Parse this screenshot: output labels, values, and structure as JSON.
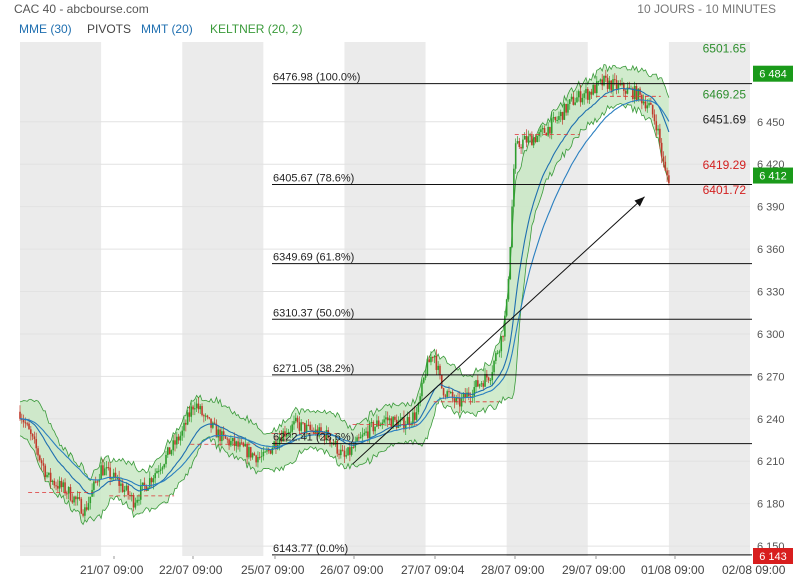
{
  "header": {
    "title": "CAC 40 - abcbourse.com",
    "period": "10 JOURS - 10 MINUTES"
  },
  "legend": {
    "mme": "MME (30)",
    "pivots": "PIVOTS",
    "mmt": "MMT (20)",
    "keltner": "KELTNER (20, 2)"
  },
  "colors": {
    "up": "#2e9e2e",
    "down": "#c0392b",
    "mme": "#1f6fb0",
    "mmt": "#2a7fc0",
    "keltner_line": "#3a9a3a",
    "keltner_fill": "#c9e8c4",
    "band": "#ebebeb",
    "mme_legend": "#1f6fb0",
    "keltner_legend": "#3a9a3a",
    "tag_green": "#1a9a1a",
    "tag_red": "#d81e1e"
  },
  "chart_data": {
    "type": "candlestick",
    "ylim": [
      6143,
      6505
    ],
    "yticks": [
      "6 450",
      "6 420",
      "6 390",
      "6 360",
      "6 330",
      "6 300",
      "6 270",
      "6 240",
      "6 210",
      "6 180",
      "6 150"
    ],
    "ytick_values": [
      6450,
      6420,
      6390,
      6360,
      6330,
      6300,
      6270,
      6240,
      6210,
      6180,
      6150
    ],
    "x_labels": [
      "21/07 09:00",
      "22/07 09:00",
      "25/07 09:00",
      "26/07 09:00",
      "27/07 09:04",
      "28/07 09:00",
      "29/07 09:00",
      "01/08 09:00",
      "02/08 09:00"
    ],
    "fibonacci": [
      {
        "label": "6476.98 (100.0%)",
        "value": 6476.98
      },
      {
        "label": "6405.67 (78.6%)",
        "value": 6405.67
      },
      {
        "label": "6349.69 (61.8%)",
        "value": 6349.69
      },
      {
        "label": "6310.37 (50.0%)",
        "value": 6310.37
      },
      {
        "label": "6271.05 (38.2%)",
        "value": 6271.05
      },
      {
        "label": "6222.41 (23.6%)",
        "value": 6222.41
      },
      {
        "label": "6143.77 (0.0%)",
        "value": 6143.77
      }
    ],
    "price_labels": [
      {
        "text": "6501.65",
        "value": 6501.65,
        "color": "green"
      },
      {
        "text": "6469.25",
        "value": 6469.25,
        "color": "green"
      },
      {
        "text": "6451.69",
        "value": 6451.69,
        "color": "black"
      },
      {
        "text": "6419.29",
        "value": 6419.29,
        "color": "red"
      },
      {
        "text": "6401.72",
        "value": 6401.72,
        "color": "red"
      }
    ],
    "tags": [
      {
        "text": "6 484",
        "value": 6484,
        "color": "green"
      },
      {
        "text": "6 412",
        "value": 6412,
        "color": "green"
      },
      {
        "text": "6 143",
        "value": 6143,
        "color": "red"
      }
    ],
    "price_path": [
      [
        0,
        6245
      ],
      [
        0.1,
        6232
      ],
      [
        0.35,
        6198
      ],
      [
        0.6,
        6188
      ],
      [
        0.8,
        6175
      ],
      [
        1,
        6205
      ],
      [
        1.2,
        6196
      ],
      [
        1.4,
        6182
      ],
      [
        1.6,
        6197
      ],
      [
        1.8,
        6213
      ],
      [
        2,
        6230
      ],
      [
        2.15,
        6252
      ],
      [
        2.3,
        6238
      ],
      [
        2.5,
        6226
      ],
      [
        2.7,
        6220
      ],
      [
        2.9,
        6214
      ],
      [
        3,
        6212
      ],
      [
        3.2,
        6228
      ],
      [
        3.4,
        6236
      ],
      [
        3.6,
        6231
      ],
      [
        3.8,
        6228
      ],
      [
        4,
        6212
      ],
      [
        4.15,
        6222
      ],
      [
        4.3,
        6232
      ],
      [
        4.5,
        6240
      ],
      [
        4.7,
        6236
      ],
      [
        4.9,
        6244
      ],
      [
        5,
        6274
      ],
      [
        5.1,
        6288
      ],
      [
        5.2,
        6262
      ],
      [
        5.4,
        6250
      ],
      [
        5.6,
        6262
      ],
      [
        5.8,
        6272
      ],
      [
        5.95,
        6300
      ],
      [
        6,
        6320
      ],
      [
        6.05,
        6370
      ],
      [
        6.1,
        6430
      ],
      [
        6.2,
        6436
      ],
      [
        6.4,
        6440
      ],
      [
        6.6,
        6450
      ],
      [
        6.8,
        6464
      ],
      [
        6.95,
        6470
      ],
      [
        7,
        6470
      ],
      [
        7.2,
        6478
      ],
      [
        7.4,
        6474
      ],
      [
        7.6,
        6470
      ],
      [
        7.75,
        6462
      ],
      [
        7.85,
        6448
      ],
      [
        7.95,
        6414
      ],
      [
        8,
        6410
      ]
    ]
  }
}
